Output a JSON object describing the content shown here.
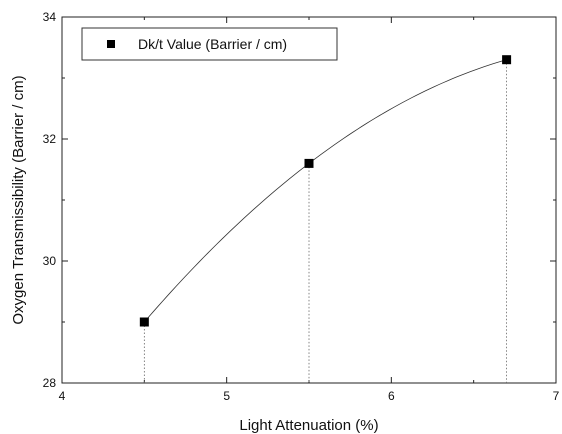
{
  "chart_data": {
    "type": "scatter",
    "title": "",
    "xlabel": "Light Attenuation (%)",
    "ylabel": "Oxygen Transmissibility (Barrier / cm)",
    "xlim": [
      4,
      7
    ],
    "ylim": [
      28,
      34
    ],
    "xticks": [
      4,
      5,
      6,
      7
    ],
    "yticks": [
      28,
      30,
      32,
      34
    ],
    "grid": false,
    "legend_position": "top-left",
    "fit_curve": "smooth",
    "drop_lines": "dotted",
    "series": [
      {
        "name": "Dk/t Value (Barrier / cm)",
        "marker": "square",
        "color": "#000000",
        "x": [
          4.5,
          5.5,
          6.7
        ],
        "y": [
          29.0,
          31.6,
          33.3
        ]
      }
    ]
  }
}
